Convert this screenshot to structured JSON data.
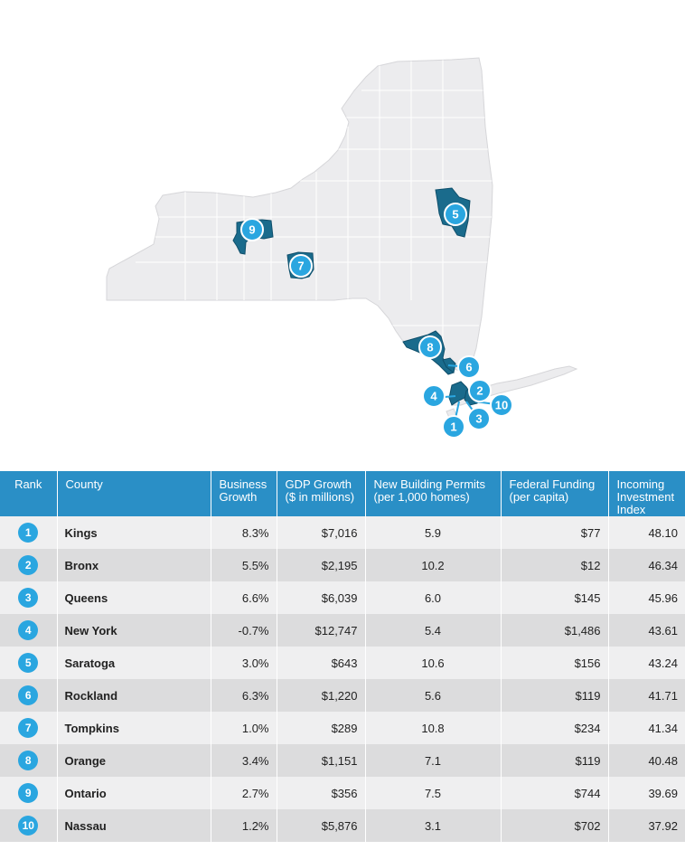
{
  "colors": {
    "header_bg": "#2a8fc6",
    "marker": "#2aa6e0",
    "highlight_county": "#1a6b8c",
    "state_fill": "#ececee",
    "row_odd": "#efeff0",
    "row_even": "#dcdcdd"
  },
  "map": {
    "markers": [
      "1",
      "2",
      "3",
      "4",
      "5",
      "6",
      "7",
      "8",
      "9",
      "10"
    ]
  },
  "chart_data": {
    "type": "table",
    "columns": [
      "Rank",
      "County",
      "Business Growth",
      "GDP Growth ($ in millions)",
      "New Building Permits (per 1,000 homes)",
      "Federal Funding (per capita)",
      "Incoming Investment Index"
    ],
    "header_lines": [
      [
        "Rank"
      ],
      [
        "County"
      ],
      [
        "Business",
        "Growth"
      ],
      [
        "GDP Growth",
        "($ in millions)"
      ],
      [
        "New Building Permits",
        "(per 1,000 homes)"
      ],
      [
        "Federal Funding",
        "(per capita)"
      ],
      [
        "Incoming",
        "Investment",
        "Index"
      ]
    ],
    "rows": [
      {
        "rank": "1",
        "county": "Kings",
        "business_growth": "8.3%",
        "gdp_growth": "$7,016",
        "building_permits": "5.9",
        "federal_funding": "$77",
        "investment_index": "48.10"
      },
      {
        "rank": "2",
        "county": "Bronx",
        "business_growth": "5.5%",
        "gdp_growth": "$2,195",
        "building_permits": "10.2",
        "federal_funding": "$12",
        "investment_index": "46.34"
      },
      {
        "rank": "3",
        "county": "Queens",
        "business_growth": "6.6%",
        "gdp_growth": "$6,039",
        "building_permits": "6.0",
        "federal_funding": "$145",
        "investment_index": "45.96"
      },
      {
        "rank": "4",
        "county": "New York",
        "business_growth": "-0.7%",
        "gdp_growth": "$12,747",
        "building_permits": "5.4",
        "federal_funding": "$1,486",
        "investment_index": "43.61"
      },
      {
        "rank": "5",
        "county": "Saratoga",
        "business_growth": "3.0%",
        "gdp_growth": "$643",
        "building_permits": "10.6",
        "federal_funding": "$156",
        "investment_index": "43.24"
      },
      {
        "rank": "6",
        "county": "Rockland",
        "business_growth": "6.3%",
        "gdp_growth": "$1,220",
        "building_permits": "5.6",
        "federal_funding": "$119",
        "investment_index": "41.71"
      },
      {
        "rank": "7",
        "county": "Tompkins",
        "business_growth": "1.0%",
        "gdp_growth": "$289",
        "building_permits": "10.8",
        "federal_funding": "$234",
        "investment_index": "41.34"
      },
      {
        "rank": "8",
        "county": "Orange",
        "business_growth": "3.4%",
        "gdp_growth": "$1,151",
        "building_permits": "7.1",
        "federal_funding": "$119",
        "investment_index": "40.48"
      },
      {
        "rank": "9",
        "county": "Ontario",
        "business_growth": "2.7%",
        "gdp_growth": "$356",
        "building_permits": "7.5",
        "federal_funding": "$744",
        "investment_index": "39.69"
      },
      {
        "rank": "10",
        "county": "Nassau",
        "business_growth": "1.2%",
        "gdp_growth": "$5,876",
        "building_permits": "3.1",
        "federal_funding": "$702",
        "investment_index": "37.92"
      }
    ]
  }
}
